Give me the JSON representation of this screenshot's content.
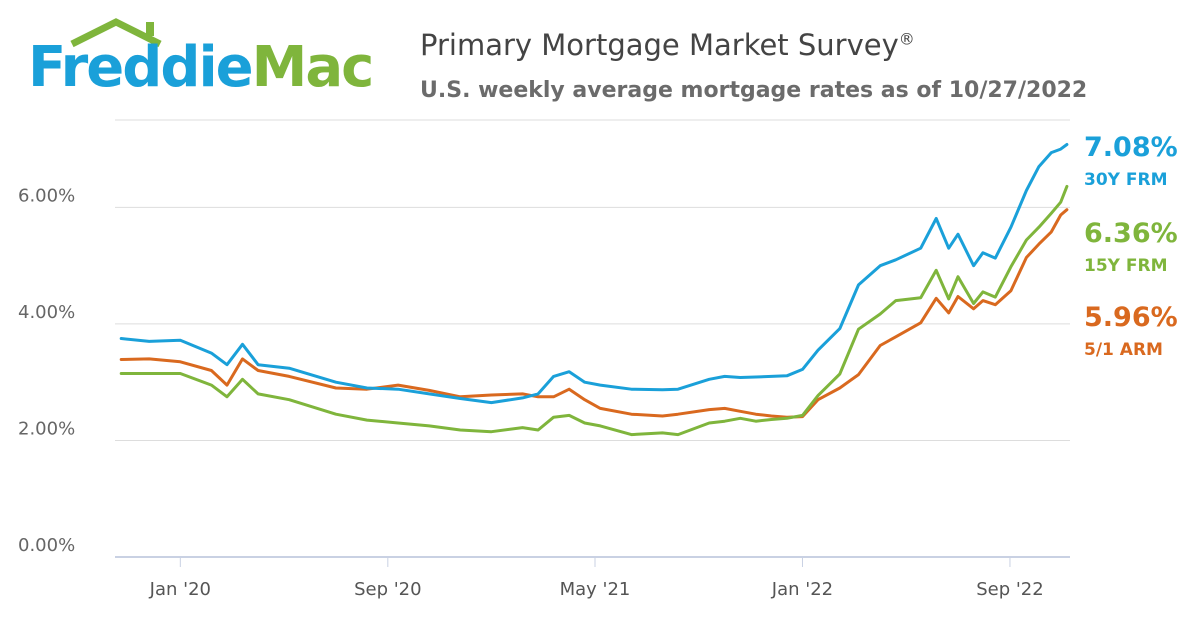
{
  "brand": {
    "name_part1": "Freddie",
    "name_part2": "Mac",
    "colors": {
      "blue": "#1aa0d9",
      "green": "#7fb53c",
      "orange": "#d9691f"
    }
  },
  "header": {
    "title": "Primary Mortgage Market Survey",
    "title_mark": "®",
    "subtitle": "U.S. weekly average mortgage rates as of 10/27/2022"
  },
  "chart_data": {
    "type": "line",
    "title": "Primary Mortgage Market Survey",
    "subtitle": "U.S. weekly average mortgage rates as of 10/27/2022",
    "xlabel": "",
    "ylabel": "",
    "ylim": [
      0,
      7.5
    ],
    "y_ticks": [
      0,
      2,
      4,
      6
    ],
    "y_tick_labels": [
      "0.00%",
      "2.00%",
      "4.00%",
      "6.00%"
    ],
    "x_ticks": [
      2020.0,
      2020.667,
      2021.333,
      2022.0,
      2022.667
    ],
    "x_tick_labels": [
      "Jan '20",
      "Sep '20",
      "May '21",
      "Jan '22",
      "Sep '22"
    ],
    "xlim": [
      2019.79,
      2022.86
    ],
    "grid": true,
    "legend": "right-end labels",
    "series": [
      {
        "name": "30Y FRM",
        "last_value_label": "7.08%",
        "color": "#1aa0d9",
        "x": [
          2019.81,
          2019.9,
          2020.0,
          2020.1,
          2020.15,
          2020.2,
          2020.25,
          2020.35,
          2020.5,
          2020.6,
          2020.7,
          2020.8,
          2020.9,
          2021.0,
          2021.1,
          2021.15,
          2021.2,
          2021.25,
          2021.3,
          2021.35,
          2021.45,
          2021.55,
          2021.6,
          2021.7,
          2021.75,
          2021.8,
          2021.85,
          2021.9,
          2021.95,
          2022.0,
          2022.05,
          2022.12,
          2022.18,
          2022.25,
          2022.3,
          2022.38,
          2022.43,
          2022.47,
          2022.5,
          2022.55,
          2022.58,
          2022.62,
          2022.67,
          2022.72,
          2022.76,
          2022.8,
          2022.83,
          2022.85
        ],
        "y": [
          3.75,
          3.7,
          3.72,
          3.5,
          3.3,
          3.65,
          3.3,
          3.24,
          3.0,
          2.9,
          2.88,
          2.8,
          2.72,
          2.65,
          2.73,
          2.8,
          3.1,
          3.18,
          3.0,
          2.95,
          2.88,
          2.87,
          2.88,
          3.05,
          3.1,
          3.08,
          3.09,
          3.1,
          3.11,
          3.22,
          3.55,
          3.92,
          4.67,
          5.0,
          5.1,
          5.3,
          5.81,
          5.3,
          5.54,
          5.0,
          5.22,
          5.13,
          5.66,
          6.29,
          6.7,
          6.94,
          7.0,
          7.08
        ]
      },
      {
        "name": "15Y FRM",
        "last_value_label": "6.36%",
        "color": "#7fb53c",
        "x": [
          2019.81,
          2019.9,
          2020.0,
          2020.1,
          2020.15,
          2020.2,
          2020.25,
          2020.35,
          2020.5,
          2020.6,
          2020.7,
          2020.8,
          2020.9,
          2021.0,
          2021.1,
          2021.15,
          2021.2,
          2021.25,
          2021.3,
          2021.35,
          2021.45,
          2021.55,
          2021.6,
          2021.7,
          2021.75,
          2021.8,
          2021.85,
          2021.9,
          2021.95,
          2022.0,
          2022.05,
          2022.12,
          2022.18,
          2022.25,
          2022.3,
          2022.38,
          2022.43,
          2022.47,
          2022.5,
          2022.55,
          2022.58,
          2022.62,
          2022.67,
          2022.72,
          2022.76,
          2022.8,
          2022.83,
          2022.85
        ],
        "y": [
          3.15,
          3.15,
          3.15,
          2.95,
          2.75,
          3.05,
          2.8,
          2.7,
          2.45,
          2.35,
          2.3,
          2.25,
          2.18,
          2.15,
          2.22,
          2.18,
          2.4,
          2.43,
          2.3,
          2.25,
          2.1,
          2.13,
          2.1,
          2.3,
          2.33,
          2.38,
          2.33,
          2.36,
          2.38,
          2.43,
          2.77,
          3.14,
          3.91,
          4.17,
          4.4,
          4.45,
          4.92,
          4.43,
          4.81,
          4.35,
          4.55,
          4.46,
          4.98,
          5.44,
          5.66,
          5.9,
          6.09,
          6.36
        ]
      },
      {
        "name": "5/1 ARM",
        "last_value_label": "5.96%",
        "color": "#d9691f",
        "x": [
          2019.81,
          2019.9,
          2020.0,
          2020.1,
          2020.15,
          2020.2,
          2020.25,
          2020.35,
          2020.5,
          2020.6,
          2020.7,
          2020.8,
          2020.9,
          2021.0,
          2021.1,
          2021.15,
          2021.2,
          2021.25,
          2021.3,
          2021.35,
          2021.45,
          2021.55,
          2021.6,
          2021.7,
          2021.75,
          2021.8,
          2021.85,
          2021.9,
          2021.95,
          2022.0,
          2022.05,
          2022.12,
          2022.18,
          2022.25,
          2022.3,
          2022.38,
          2022.43,
          2022.47,
          2022.5,
          2022.55,
          2022.58,
          2022.62,
          2022.67,
          2022.72,
          2022.76,
          2022.8,
          2022.83,
          2022.85
        ],
        "y": [
          3.39,
          3.4,
          3.35,
          3.2,
          2.95,
          3.4,
          3.2,
          3.1,
          2.9,
          2.88,
          2.95,
          2.86,
          2.75,
          2.78,
          2.8,
          2.75,
          2.75,
          2.88,
          2.7,
          2.55,
          2.45,
          2.42,
          2.45,
          2.53,
          2.55,
          2.5,
          2.45,
          2.42,
          2.4,
          2.41,
          2.7,
          2.9,
          3.13,
          3.63,
          3.78,
          4.02,
          4.44,
          4.19,
          4.47,
          4.26,
          4.4,
          4.33,
          4.57,
          5.14,
          5.37,
          5.58,
          5.87,
          5.96
        ]
      }
    ]
  }
}
